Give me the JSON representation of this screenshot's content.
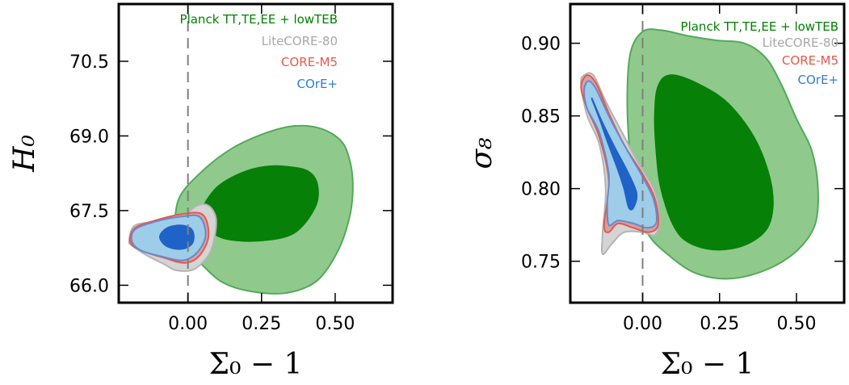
{
  "chart_data": [
    {
      "type": "contour",
      "xlabel": "Σ₀ − 1",
      "ylabel": "H₀",
      "xlim": [
        -0.235,
        0.695
      ],
      "ylim": [
        65.65,
        71.65
      ],
      "xticks": [
        0.0,
        0.25,
        0.5
      ],
      "xtick_labels": [
        "0.00",
        "0.25",
        "0.50"
      ],
      "yticks": [
        66.0,
        67.5,
        69.0,
        70.5
      ],
      "ytick_labels": [
        "66.0",
        "67.5",
        "69.0",
        "70.5"
      ],
      "reference_line_x": 0.0,
      "legend": [
        {
          "label": "Planck TT,TE,EE + lowTEB",
          "color": "#008000"
        },
        {
          "label": "LiteCORE-80",
          "color": "#a8a8a8"
        },
        {
          "label": "CORE-M5",
          "color": "#e4594a"
        },
        {
          "label": "COrE+",
          "color": "#2d7fd6"
        }
      ],
      "series": [
        {
          "name": "Planck TT,TE,EE + lowTEB",
          "level": "95%",
          "fill": "#8fca8c",
          "stroke": "#55a85a",
          "points": [
            [
              -0.045,
              67.05
            ],
            [
              -0.03,
              67.75
            ],
            [
              0.05,
              68.3
            ],
            [
              0.15,
              68.75
            ],
            [
              0.26,
              69.05
            ],
            [
              0.36,
              69.2
            ],
            [
              0.45,
              69.15
            ],
            [
              0.52,
              68.9
            ],
            [
              0.55,
              68.5
            ],
            [
              0.56,
              68.0
            ],
            [
              0.55,
              67.4
            ],
            [
              0.51,
              66.7
            ],
            [
              0.44,
              66.1
            ],
            [
              0.34,
              65.85
            ],
            [
              0.22,
              65.87
            ],
            [
              0.12,
              66.05
            ],
            [
              0.05,
              66.4
            ],
            [
              0.0,
              66.72
            ],
            [
              -0.035,
              66.9
            ]
          ]
        },
        {
          "name": "Planck TT,TE,EE + lowTEB",
          "level": "68%",
          "fill": "#078007",
          "stroke": "#078007",
          "points": [
            [
              0.05,
              67.55
            ],
            [
              0.1,
              67.97
            ],
            [
              0.18,
              68.25
            ],
            [
              0.26,
              68.38
            ],
            [
              0.34,
              68.38
            ],
            [
              0.41,
              68.28
            ],
            [
              0.44,
              68.0
            ],
            [
              0.43,
              67.55
            ],
            [
              0.36,
              67.05
            ],
            [
              0.25,
              66.9
            ],
            [
              0.14,
              66.92
            ],
            [
              0.08,
              67.07
            ],
            [
              0.05,
              67.3
            ]
          ]
        },
        {
          "name": "LiteCORE-80",
          "level": "95%",
          "fill": "#d4d4d4",
          "stroke": "#b4b4b4",
          "points": [
            [
              -0.2,
              66.9
            ],
            [
              -0.18,
              67.2
            ],
            [
              -0.1,
              67.28
            ],
            [
              -0.02,
              67.38
            ],
            [
              0.03,
              67.6
            ],
            [
              0.07,
              67.6
            ],
            [
              0.095,
              67.35
            ],
            [
              0.09,
              66.95
            ],
            [
              0.07,
              66.6
            ],
            [
              0.02,
              66.32
            ],
            [
              -0.04,
              66.3
            ],
            [
              -0.08,
              66.42
            ],
            [
              -0.14,
              66.6
            ],
            [
              -0.19,
              66.8
            ]
          ]
        },
        {
          "name": "CORE-M5",
          "level": "95%",
          "fill": "#cfa3a3",
          "stroke": "#e4594a",
          "points": [
            [
              -0.195,
              66.85
            ],
            [
              -0.18,
              67.15
            ],
            [
              -0.1,
              67.32
            ],
            [
              -0.02,
              67.43
            ],
            [
              0.05,
              67.42
            ],
            [
              0.07,
              67.0
            ],
            [
              0.04,
              66.6
            ],
            [
              -0.01,
              66.45
            ],
            [
              -0.08,
              66.55
            ],
            [
              -0.15,
              66.68
            ]
          ]
        },
        {
          "name": "COrE+",
          "level": "95%",
          "fill": "#9dcde8",
          "stroke": "#6f86c9",
          "points": [
            [
              -0.19,
              66.88
            ],
            [
              -0.18,
              67.12
            ],
            [
              -0.11,
              67.28
            ],
            [
              -0.02,
              67.38
            ],
            [
              0.04,
              67.37
            ],
            [
              0.06,
              67.0
            ],
            [
              0.03,
              66.65
            ],
            [
              -0.02,
              66.5
            ],
            [
              -0.09,
              66.58
            ],
            [
              -0.16,
              66.7
            ]
          ]
        },
        {
          "name": "COrE+",
          "level": "68%",
          "fill": "#1f62c8",
          "stroke": "#1f62c8",
          "points": [
            [
              -0.095,
              66.97
            ],
            [
              -0.07,
              67.15
            ],
            [
              -0.02,
              67.2
            ],
            [
              0.015,
              67.1
            ],
            [
              0.015,
              66.85
            ],
            [
              -0.02,
              66.73
            ],
            [
              -0.07,
              66.78
            ]
          ]
        }
      ]
    },
    {
      "type": "contour",
      "xlabel": "Σ₀ − 1",
      "ylabel": "σ₈",
      "xlim": [
        -0.235,
        0.655
      ],
      "ylim": [
        0.7215,
        0.927
      ],
      "xticks": [
        0.0,
        0.25,
        0.5
      ],
      "xtick_labels": [
        "0.00",
        "0.25",
        "0.50"
      ],
      "yticks": [
        0.75,
        0.8,
        0.85,
        0.9
      ],
      "ytick_labels": [
        "0.75",
        "0.80",
        "0.85",
        "0.90"
      ],
      "reference_line_x": 0.0,
      "legend": [
        {
          "label": "Planck TT,TE,EE + lowTEB",
          "color": "#008000"
        },
        {
          "label": "LiteCORE-80",
          "color": "#a8a8a8"
        },
        {
          "label": "CORE-M5",
          "color": "#e4594a"
        },
        {
          "label": "COrE+",
          "color": "#2d7fd6"
        }
      ],
      "series": [
        {
          "name": "Planck TT,TE,EE + lowTEB",
          "level": "95%",
          "fill": "#8fca8c",
          "stroke": "#55a85a",
          "points": [
            [
              -0.04,
              0.893
            ],
            [
              0.0,
              0.908
            ],
            [
              0.06,
              0.909
            ],
            [
              0.15,
              0.905
            ],
            [
              0.24,
              0.902
            ],
            [
              0.33,
              0.9
            ],
            [
              0.4,
              0.89
            ],
            [
              0.45,
              0.872
            ],
            [
              0.5,
              0.848
            ],
            [
              0.55,
              0.826
            ],
            [
              0.57,
              0.8
            ],
            [
              0.56,
              0.775
            ],
            [
              0.5,
              0.757
            ],
            [
              0.4,
              0.744
            ],
            [
              0.28,
              0.738
            ],
            [
              0.17,
              0.742
            ],
            [
              0.08,
              0.755
            ],
            [
              0.02,
              0.768
            ],
            [
              -0.02,
              0.788
            ],
            [
              -0.04,
              0.82
            ],
            [
              -0.05,
              0.86
            ]
          ]
        },
        {
          "name": "Planck TT,TE,EE + lowTEB",
          "level": "68%",
          "fill": "#078007",
          "stroke": "#078007",
          "points": [
            [
              0.04,
              0.85
            ],
            [
              0.05,
              0.87
            ],
            [
              0.09,
              0.878
            ],
            [
              0.18,
              0.872
            ],
            [
              0.28,
              0.858
            ],
            [
              0.37,
              0.832
            ],
            [
              0.42,
              0.8
            ],
            [
              0.41,
              0.775
            ],
            [
              0.34,
              0.762
            ],
            [
              0.24,
              0.758
            ],
            [
              0.15,
              0.763
            ],
            [
              0.1,
              0.775
            ],
            [
              0.06,
              0.8
            ],
            [
              0.045,
              0.825
            ]
          ]
        },
        {
          "name": "LiteCORE-80",
          "level": "95%",
          "fill": "#d4d4d4",
          "stroke": "#b4b4b4",
          "points": [
            [
              -0.2,
              0.872
            ],
            [
              -0.19,
              0.878
            ],
            [
              -0.16,
              0.878
            ],
            [
              -0.12,
              0.86
            ],
            [
              -0.07,
              0.84
            ],
            [
              -0.02,
              0.82
            ],
            [
              0.04,
              0.798
            ],
            [
              0.055,
              0.778
            ],
            [
              0.04,
              0.768
            ],
            [
              0.0,
              0.77
            ],
            [
              -0.06,
              0.77
            ],
            [
              -0.1,
              0.762
            ],
            [
              -0.13,
              0.755
            ],
            [
              -0.13,
              0.77
            ],
            [
              -0.12,
              0.8
            ],
            [
              -0.14,
              0.83
            ],
            [
              -0.18,
              0.85
            ]
          ]
        },
        {
          "name": "CORE-M5",
          "level": "95%",
          "fill": "#cfa3a3",
          "stroke": "#e4594a",
          "points": [
            [
              -0.2,
              0.87
            ],
            [
              -0.18,
              0.878
            ],
            [
              -0.15,
              0.872
            ],
            [
              -0.11,
              0.852
            ],
            [
              -0.06,
              0.83
            ],
            [
              0.0,
              0.81
            ],
            [
              0.04,
              0.793
            ],
            [
              0.05,
              0.775
            ],
            [
              0.02,
              0.77
            ],
            [
              -0.03,
              0.773
            ],
            [
              -0.08,
              0.776
            ],
            [
              -0.11,
              0.77
            ],
            [
              -0.125,
              0.775
            ],
            [
              -0.11,
              0.805
            ],
            [
              -0.14,
              0.835
            ],
            [
              -0.18,
              0.855
            ]
          ]
        },
        {
          "name": "COrE+",
          "level": "95%",
          "fill": "#9dcde8",
          "stroke": "#6f86c9",
          "points": [
            [
              -0.19,
              0.868
            ],
            [
              -0.175,
              0.874
            ],
            [
              -0.15,
              0.868
            ],
            [
              -0.11,
              0.85
            ],
            [
              -0.06,
              0.83
            ],
            [
              -0.005,
              0.81
            ],
            [
              0.035,
              0.793
            ],
            [
              0.045,
              0.777
            ],
            [
              0.015,
              0.773
            ],
            [
              -0.03,
              0.776
            ],
            [
              -0.08,
              0.778
            ],
            [
              -0.11,
              0.775
            ],
            [
              -0.115,
              0.79
            ],
            [
              -0.11,
              0.81
            ],
            [
              -0.14,
              0.838
            ],
            [
              -0.18,
              0.855
            ]
          ]
        },
        {
          "name": "COrE+",
          "level": "68%",
          "fill": "#1f62c8",
          "stroke": "#1f62c8",
          "points": [
            [
              -0.165,
              0.862
            ],
            [
              -0.13,
              0.845
            ],
            [
              -0.09,
              0.828
            ],
            [
              -0.05,
              0.812
            ],
            [
              -0.02,
              0.797
            ],
            [
              -0.03,
              0.787
            ],
            [
              -0.045,
              0.787
            ],
            [
              -0.06,
              0.8
            ],
            [
              -0.08,
              0.813
            ],
            [
              -0.11,
              0.83
            ],
            [
              -0.14,
              0.848
            ]
          ]
        }
      ]
    }
  ]
}
